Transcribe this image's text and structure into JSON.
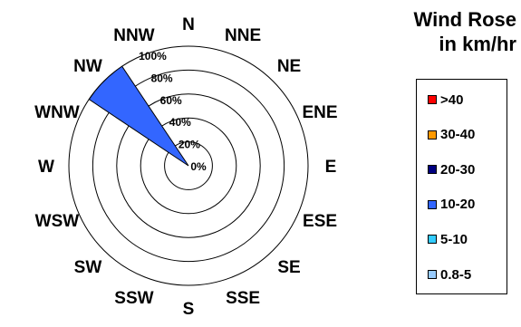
{
  "chart_data": {
    "type": "radar",
    "title": "Wind Rose",
    "subtitle": "in km/hr",
    "directions": [
      "N",
      "NNE",
      "NE",
      "ENE",
      "E",
      "ESE",
      "SE",
      "SSE",
      "S",
      "SSW",
      "SW",
      "WSW",
      "W",
      "WNW",
      "NW",
      "NNW"
    ],
    "radial_ticks": [
      "0%",
      "20%",
      "40%",
      "60%",
      "80%",
      "100%"
    ],
    "radial_range": [
      0,
      100
    ],
    "legend_position": "right",
    "legend": [
      {
        "label": ">40",
        "color": "#ff0000"
      },
      {
        "label": "30-40",
        "color": "#ff9900"
      },
      {
        "label": "20-30",
        "color": "#000080"
      },
      {
        "label": "10-20",
        "color": "#3366ff"
      },
      {
        "label": "5-10",
        "color": "#33ccff"
      },
      {
        "label": "0.8-5",
        "color": "#99ccff"
      }
    ],
    "series": [
      {
        "name": "10-20",
        "color": "#3366ff",
        "values": [
          0,
          0,
          0,
          0,
          0,
          0,
          0,
          0,
          0,
          0,
          0,
          0,
          0,
          0,
          100,
          0
        ]
      }
    ]
  }
}
